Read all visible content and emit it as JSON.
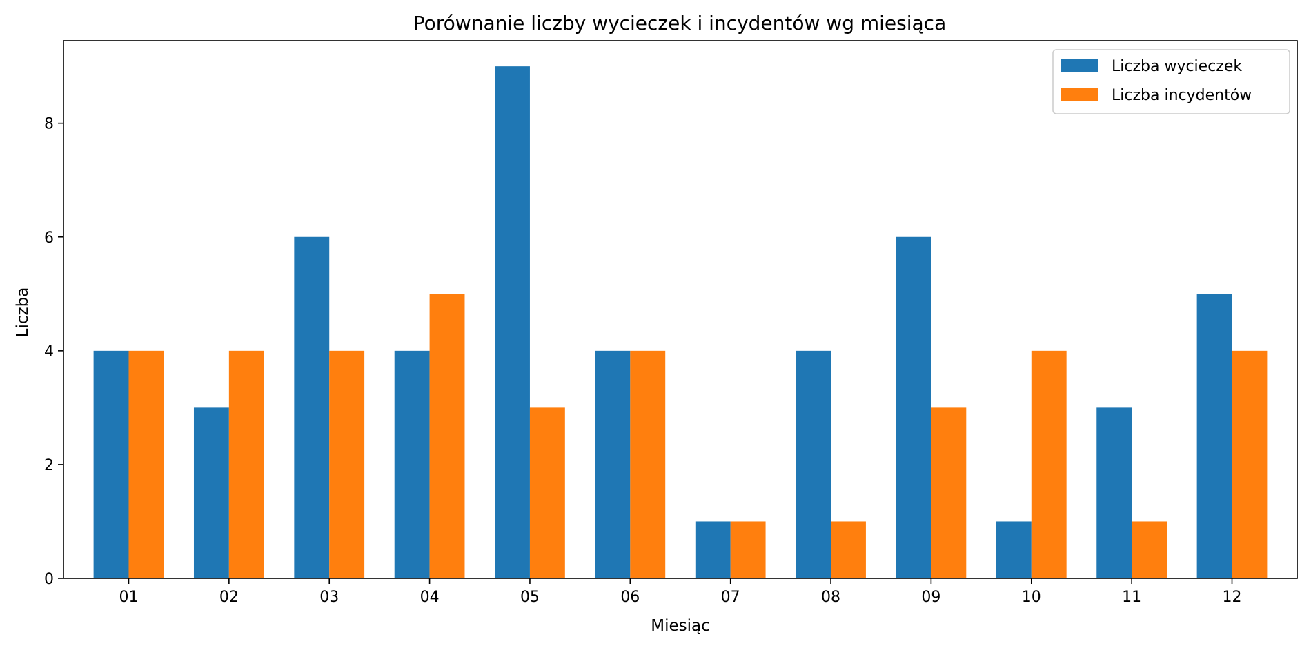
{
  "chart_data": {
    "type": "bar",
    "title": "Porównanie liczby wycieczek i incydentów wg miesiąca",
    "xlabel": "Miesiąc",
    "ylabel": "Liczba",
    "categories": [
      "01",
      "02",
      "03",
      "04",
      "05",
      "06",
      "07",
      "08",
      "09",
      "10",
      "11",
      "12"
    ],
    "series": [
      {
        "name": "Liczba wycieczek",
        "color": "#1f77b4",
        "values": [
          4,
          3,
          6,
          4,
          9,
          4,
          1,
          4,
          6,
          1,
          3,
          5
        ]
      },
      {
        "name": "Liczba incydentów",
        "color": "#ff7f0e",
        "values": [
          4,
          4,
          4,
          5,
          3,
          4,
          1,
          1,
          3,
          4,
          1,
          4
        ]
      }
    ],
    "ylim": [
      0,
      9.45
    ],
    "yticks": [
      0,
      2,
      4,
      6,
      8
    ],
    "grid": false,
    "legend_position": "top-right"
  }
}
